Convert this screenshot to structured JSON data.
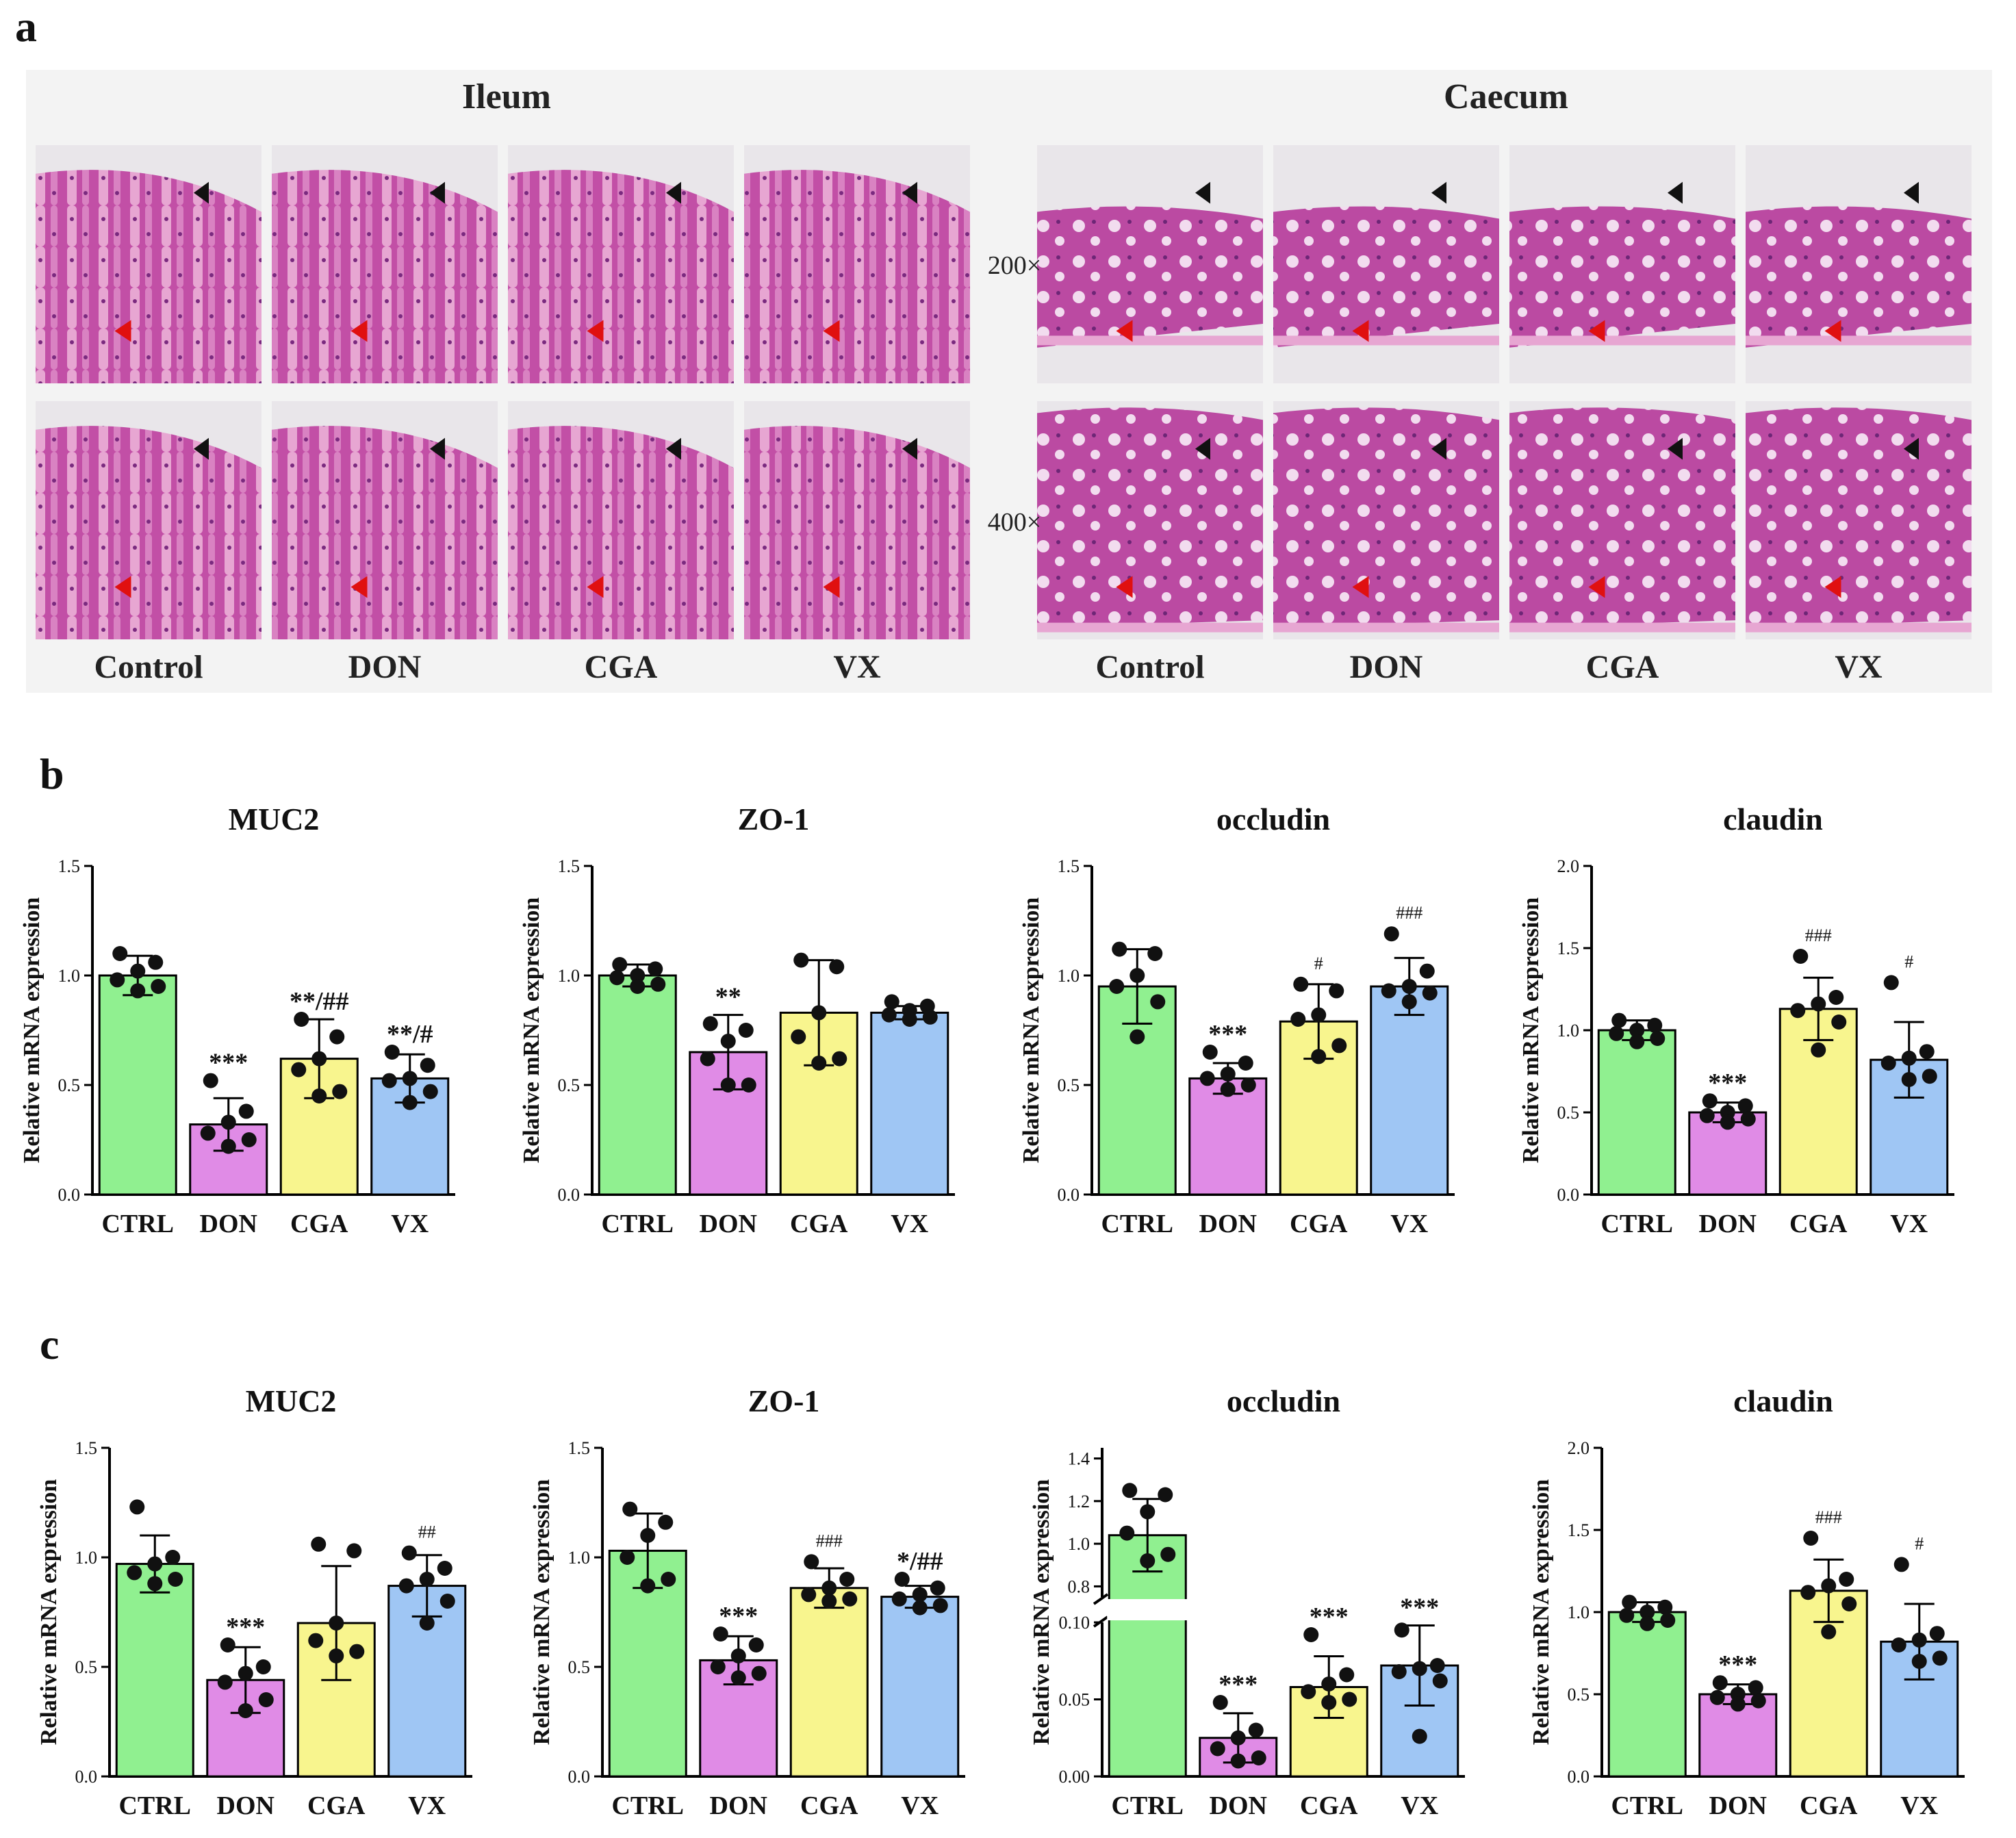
{
  "panel_a": {
    "letter": "a",
    "sections": [
      {
        "title": "Ileum",
        "labels": [
          "Control",
          "DON",
          "CGA",
          "VX"
        ]
      },
      {
        "title": "Caecum",
        "labels": [
          "Control",
          "DON",
          "CGA",
          "VX"
        ]
      }
    ],
    "magnifications": [
      "200×",
      "400×"
    ],
    "colors": {
      "tissue": "#c24fa6",
      "tissue_light": "#e7a6d2",
      "lumen": "#e9e6ea",
      "arrow_black": "#111111",
      "arrow_red": "#e01010"
    }
  },
  "panel_b": {
    "letter": "b"
  },
  "panel_c": {
    "letter": "c"
  },
  "colors": {
    "CTRL": "#90f090",
    "DON": "#e08be6",
    "CGA": "#f8f58e",
    "VX": "#9fc6f4"
  },
  "chart_data": [
    {
      "panel": "b",
      "type": "bar",
      "title": "MUC2",
      "ylabel": "Relative mRNA expression",
      "categories": [
        "CTRL",
        "DON",
        "CGA",
        "VX"
      ],
      "ylim": [
        0,
        1.5
      ],
      "yticks": [
        "0.0",
        "0.5",
        "1.0",
        "1.5"
      ],
      "values": [
        1.0,
        0.32,
        0.62,
        0.53
      ],
      "sd": [
        0.09,
        0.12,
        0.18,
        0.11
      ],
      "points": [
        [
          1.1,
          1.06,
          1.02,
          0.98,
          0.95,
          0.93
        ],
        [
          0.52,
          0.38,
          0.33,
          0.28,
          0.25,
          0.22
        ],
        [
          0.8,
          0.72,
          0.62,
          0.57,
          0.47,
          0.45
        ],
        [
          0.65,
          0.59,
          0.53,
          0.52,
          0.47,
          0.42
        ]
      ],
      "annotations": [
        {
          "star": "",
          "hash": ""
        },
        {
          "star": "***",
          "hash": ""
        },
        {
          "star": "**",
          "hash": "/##"
        },
        {
          "star": "**",
          "hash": "/#"
        }
      ]
    },
    {
      "panel": "b",
      "type": "bar",
      "title": "ZO-1",
      "ylabel": "Relative mRNA expression",
      "categories": [
        "CTRL",
        "DON",
        "CGA",
        "VX"
      ],
      "ylim": [
        0,
        1.5
      ],
      "yticks": [
        "0.0",
        "0.5",
        "1.0",
        "1.5"
      ],
      "values": [
        1.0,
        0.65,
        0.83,
        0.83
      ],
      "sd": [
        0.05,
        0.17,
        0.24,
        0.03
      ],
      "points": [
        [
          1.05,
          1.03,
          1.0,
          0.99,
          0.96,
          0.95
        ],
        [
          0.78,
          0.75,
          0.7,
          0.62,
          0.5,
          0.5
        ],
        [
          1.07,
          1.04,
          0.83,
          0.72,
          0.62,
          0.6
        ],
        [
          0.88,
          0.86,
          0.84,
          0.82,
          0.81,
          0.8
        ]
      ],
      "annotations": [
        {
          "star": "",
          "hash": ""
        },
        {
          "star": "**",
          "hash": ""
        },
        {
          "star": "",
          "hash": ""
        },
        {
          "star": "",
          "hash": ""
        }
      ]
    },
    {
      "panel": "b",
      "type": "bar",
      "title": "occludin",
      "ylabel": "Relative mRNA expression",
      "categories": [
        "CTRL",
        "DON",
        "CGA",
        "VX"
      ],
      "ylim": [
        0,
        1.5
      ],
      "yticks": [
        "0.0",
        "0.5",
        "1.0",
        "1.5"
      ],
      "values": [
        0.95,
        0.53,
        0.79,
        0.95
      ],
      "sd": [
        0.17,
        0.07,
        0.17,
        0.13
      ],
      "points": [
        [
          1.12,
          1.1,
          1.0,
          0.95,
          0.88,
          0.72
        ],
        [
          0.65,
          0.6,
          0.55,
          0.53,
          0.5,
          0.48
        ],
        [
          0.96,
          0.93,
          0.82,
          0.8,
          0.68,
          0.63
        ],
        [
          1.19,
          1.02,
          0.95,
          0.93,
          0.92,
          0.88
        ]
      ],
      "annotations": [
        {
          "star": "",
          "hash": ""
        },
        {
          "star": "***",
          "hash": ""
        },
        {
          "star": "",
          "hash": "#"
        },
        {
          "star": "",
          "hash": "###"
        }
      ]
    },
    {
      "panel": "b",
      "type": "bar",
      "title": "claudin",
      "ylabel": "Relative mRNA expression",
      "categories": [
        "CTRL",
        "DON",
        "CGA",
        "VX"
      ],
      "ylim": [
        0,
        2.0
      ],
      "yticks": [
        "0.0",
        "0.5",
        "1.0",
        "1.5",
        "2.0"
      ],
      "values": [
        1.0,
        0.5,
        1.13,
        0.82
      ],
      "sd": [
        0.06,
        0.06,
        0.19,
        0.23
      ],
      "points": [
        [
          1.06,
          1.03,
          1.0,
          0.98,
          0.95,
          0.93
        ],
        [
          0.57,
          0.54,
          0.5,
          0.48,
          0.46,
          0.44
        ],
        [
          1.45,
          1.2,
          1.16,
          1.12,
          1.05,
          0.88
        ],
        [
          1.29,
          0.87,
          0.83,
          0.8,
          0.72,
          0.7
        ]
      ],
      "annotations": [
        {
          "star": "",
          "hash": ""
        },
        {
          "star": "***",
          "hash": ""
        },
        {
          "star": "",
          "hash": "###"
        },
        {
          "star": "",
          "hash": "#"
        }
      ]
    },
    {
      "panel": "c",
      "type": "bar",
      "title": "MUC2",
      "ylabel": "Relative mRNA expression",
      "categories": [
        "CTRL",
        "DON",
        "CGA",
        "VX"
      ],
      "ylim": [
        0,
        1.5
      ],
      "yticks": [
        "0.0",
        "0.5",
        "1.0",
        "1.5"
      ],
      "values": [
        0.97,
        0.44,
        0.7,
        0.87
      ],
      "sd": [
        0.13,
        0.15,
        0.26,
        0.14
      ],
      "points": [
        [
          1.23,
          1.0,
          0.97,
          0.93,
          0.9,
          0.88
        ],
        [
          0.6,
          0.5,
          0.47,
          0.43,
          0.35,
          0.3
        ],
        [
          1.06,
          1.03,
          0.7,
          0.62,
          0.57,
          0.55
        ],
        [
          1.02,
          0.95,
          0.9,
          0.87,
          0.8,
          0.7
        ]
      ],
      "annotations": [
        {
          "star": "",
          "hash": ""
        },
        {
          "star": "***",
          "hash": ""
        },
        {
          "star": "",
          "hash": ""
        },
        {
          "star": "",
          "hash": "##"
        }
      ]
    },
    {
      "panel": "c",
      "type": "bar",
      "title": "ZO-1",
      "ylabel": "Relative mRNA expression",
      "categories": [
        "CTRL",
        "DON",
        "CGA",
        "VX"
      ],
      "ylim": [
        0,
        1.5
      ],
      "yticks": [
        "0.0",
        "0.5",
        "1.0",
        "1.5"
      ],
      "values": [
        1.03,
        0.53,
        0.86,
        0.82
      ],
      "sd": [
        0.17,
        0.11,
        0.09,
        0.05
      ],
      "points": [
        [
          1.22,
          1.16,
          1.1,
          1.0,
          0.9,
          0.87
        ],
        [
          0.65,
          0.6,
          0.55,
          0.5,
          0.47,
          0.45
        ],
        [
          0.98,
          0.9,
          0.86,
          0.83,
          0.81,
          0.8
        ],
        [
          0.9,
          0.86,
          0.83,
          0.81,
          0.78,
          0.77
        ]
      ],
      "annotations": [
        {
          "star": "",
          "hash": ""
        },
        {
          "star": "***",
          "hash": ""
        },
        {
          "star": "",
          "hash": "###"
        },
        {
          "star": "*",
          "hash": "/##"
        }
      ]
    },
    {
      "panel": "c",
      "type": "bar",
      "title": "occludin",
      "ylabel": "Relative mRNA expression",
      "categories": [
        "CTRL",
        "DON",
        "CGA",
        "VX"
      ],
      "broken_axis": {
        "lower": [
          0,
          0.1
        ],
        "upper": [
          0.75,
          1.45
        ]
      },
      "yticks_lower": [
        "0.00",
        "0.05",
        "0.10"
      ],
      "yticks_upper": [
        "0.8",
        "1.0",
        "1.2",
        "1.4"
      ],
      "values": [
        1.04,
        0.025,
        0.058,
        0.072
      ],
      "sd": [
        0.17,
        0.016,
        0.02,
        0.026
      ],
      "points": [
        [
          1.25,
          1.23,
          1.15,
          1.05,
          0.95,
          0.92
        ],
        [
          0.048,
          0.03,
          0.025,
          0.018,
          0.012,
          0.01
        ],
        [
          0.092,
          0.066,
          0.06,
          0.055,
          0.05,
          0.048
        ],
        [
          0.095,
          0.072,
          0.07,
          0.068,
          0.062,
          0.026
        ]
      ],
      "annotations": [
        {
          "star": "",
          "hash": ""
        },
        {
          "star": "***",
          "hash": ""
        },
        {
          "star": "***",
          "hash": ""
        },
        {
          "star": "***",
          "hash": ""
        }
      ]
    },
    {
      "panel": "c",
      "type": "bar",
      "title": "claudin",
      "ylabel": "Relative mRNA expression",
      "categories": [
        "CTRL",
        "DON",
        "CGA",
        "VX"
      ],
      "ylim": [
        0,
        2.0
      ],
      "yticks": [
        "0.0",
        "0.5",
        "1.0",
        "1.5",
        "2.0"
      ],
      "values": [
        1.0,
        0.5,
        1.13,
        0.82
      ],
      "sd": [
        0.06,
        0.06,
        0.19,
        0.23
      ],
      "points": [
        [
          1.06,
          1.03,
          1.0,
          0.98,
          0.95,
          0.93
        ],
        [
          0.57,
          0.54,
          0.5,
          0.48,
          0.46,
          0.44
        ],
        [
          1.45,
          1.2,
          1.16,
          1.12,
          1.05,
          0.88
        ],
        [
          1.29,
          0.87,
          0.83,
          0.8,
          0.72,
          0.7
        ]
      ],
      "annotations": [
        {
          "star": "",
          "hash": ""
        },
        {
          "star": "***",
          "hash": ""
        },
        {
          "star": "",
          "hash": "###"
        },
        {
          "star": "",
          "hash": "#"
        }
      ]
    }
  ]
}
